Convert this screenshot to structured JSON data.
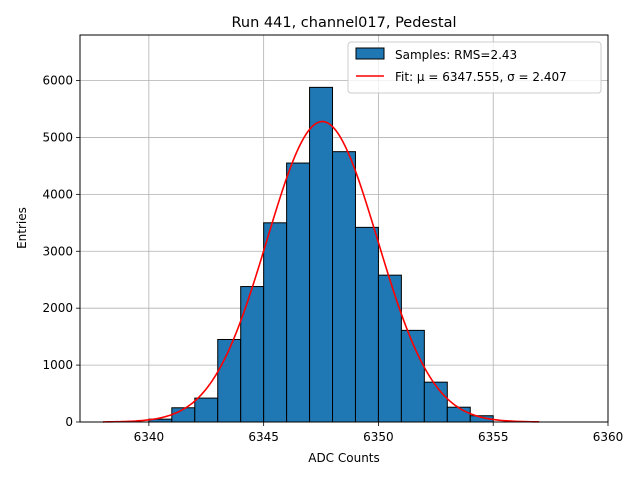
{
  "chart_data": {
    "type": "bar",
    "title": "Run 441, channel017, Pedestal",
    "xlabel": "ADC Counts",
    "ylabel": "Entries",
    "xlim": [
      6337.0,
      6360.0
    ],
    "ylim": [
      0,
      6800
    ],
    "grid": true,
    "legend_position": "top-right",
    "x_ticks": [
      6340,
      6345,
      6350,
      6355,
      6360
    ],
    "y_ticks": [
      0,
      1000,
      2000,
      3000,
      4000,
      5000,
      6000
    ],
    "bins": {
      "edges": [
        6340.0,
        6341.0,
        6342.0,
        6343.0,
        6344.0,
        6345.0,
        6346.0,
        6347.0,
        6348.0,
        6349.0,
        6350.0,
        6351.0,
        6352.0,
        6353.0,
        6354.0,
        6355.0
      ],
      "counts": [
        50,
        250,
        420,
        1450,
        2380,
        3500,
        4550,
        5880,
        4750,
        3420,
        2580,
        1610,
        700,
        260,
        110
      ],
      "color": "#1f77b4",
      "edge_color": "#000000"
    },
    "series": [
      {
        "name": "Samples: RMS=2.43",
        "kind": "histogram"
      },
      {
        "name": "Fit: μ = 6347.555, σ = 2.407",
        "kind": "line",
        "color": "#ff0000",
        "mu": 6347.555,
        "sigma": 2.407,
        "amplitude": 5280,
        "x_range": [
          6338.0,
          6357.0
        ]
      }
    ]
  }
}
